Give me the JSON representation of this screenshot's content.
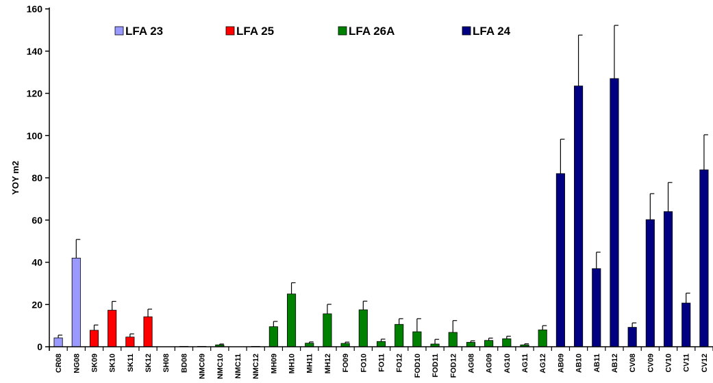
{
  "chart_data": {
    "type": "bar",
    "ylabel": "YOY m2",
    "ylim": [
      0,
      160
    ],
    "yticks": [
      0,
      20,
      40,
      60,
      80,
      100,
      120,
      140,
      160
    ],
    "grid": false,
    "legend_position": "top",
    "series": [
      {
        "name": "LFA 23",
        "color": "#9999ff"
      },
      {
        "name": "LFA 25",
        "color": "#ff0000"
      },
      {
        "name": "LFA 26A",
        "color": "#008000"
      },
      {
        "name": "LFA 24",
        "color": "#000080"
      }
    ],
    "categories": [
      "CR08",
      "NG08",
      "SK09",
      "SK10",
      "SK11",
      "SK12",
      "SH08",
      "BD08",
      "NMC09",
      "NMC10",
      "NMC11",
      "NMC12",
      "MH09",
      "MH10",
      "MH11",
      "MH12",
      "FO09",
      "FO10",
      "FO11",
      "FO12",
      "FOD10",
      "FOD11",
      "FOD12",
      "AG08",
      "AG09",
      "AG10",
      "AG11",
      "AG12",
      "AB09",
      "AB10",
      "AB11",
      "AB12",
      "CV08",
      "CV09",
      "CV10",
      "CV11",
      "CV12"
    ],
    "group": [
      0,
      0,
      1,
      1,
      1,
      1,
      1,
      1,
      2,
      2,
      2,
      2,
      2,
      2,
      2,
      2,
      2,
      2,
      2,
      2,
      2,
      2,
      2,
      2,
      2,
      2,
      2,
      2,
      3,
      3,
      3,
      3,
      3,
      3,
      3,
      3,
      3
    ],
    "values": [
      4.2,
      42,
      7.8,
      17.3,
      4.6,
      14.2,
      0,
      0.2,
      0.2,
      0.9,
      0,
      0.2,
      9.5,
      25,
      1.7,
      15.6,
      1.6,
      17.5,
      2.5,
      10.6,
      7.1,
      1.3,
      6.8,
      2.1,
      3,
      3.8,
      0.9,
      8,
      82,
      123.5,
      37,
      127,
      9.2,
      60.2,
      64,
      20.7,
      83.8
    ],
    "errors": [
      1.3,
      8.8,
      2.5,
      4.2,
      1.5,
      3.6,
      0,
      0,
      0,
      0.4,
      0,
      0,
      2.5,
      5.3,
      0.6,
      4.5,
      0.6,
      4.1,
      1.1,
      2.7,
      6.2,
      2.2,
      5.6,
      0.7,
      1.1,
      1.2,
      0.5,
      2,
      16.3,
      24.1,
      7.8,
      25.2,
      2.1,
      12.3,
      13.8,
      4.7,
      16.6
    ]
  }
}
